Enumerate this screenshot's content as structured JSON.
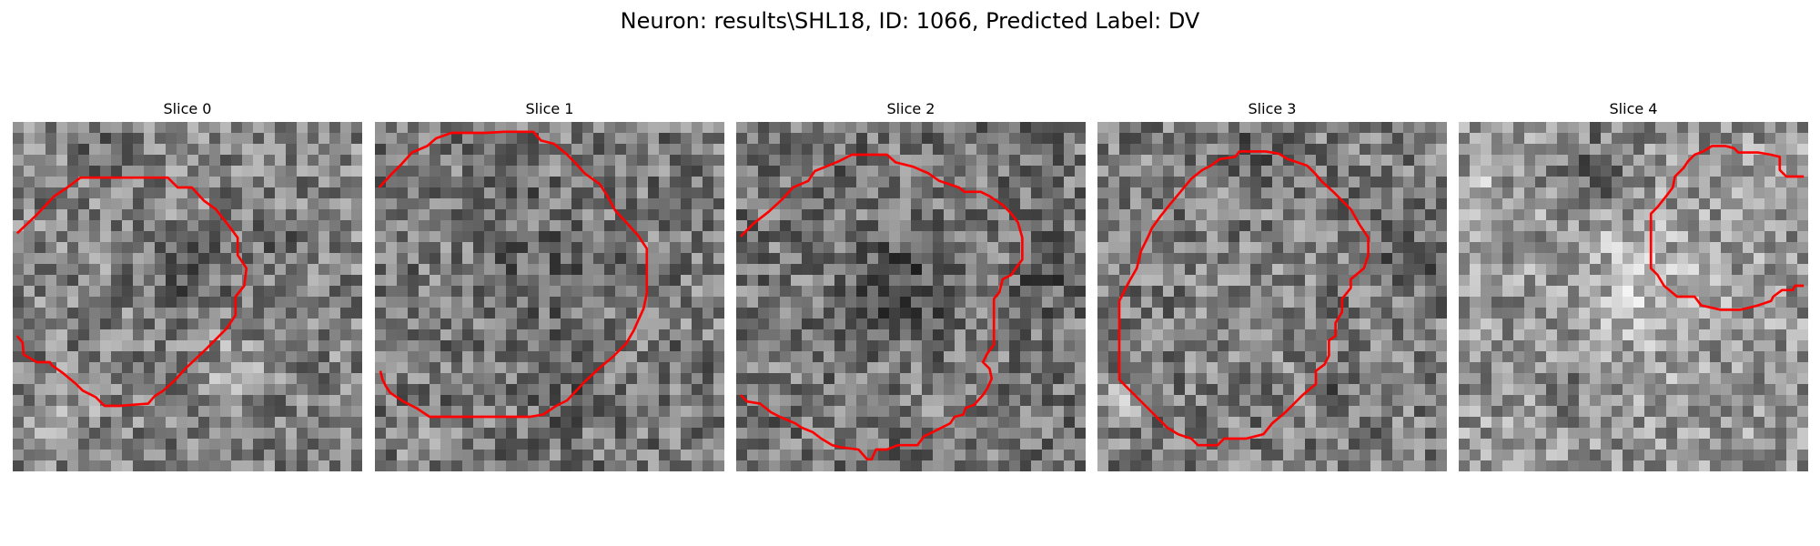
{
  "figure": {
    "title": "Neuron: results\\SHL18, ID: 1066, Predicted Label: DV"
  },
  "panels": [
    {
      "title": "Slice 0"
    },
    {
      "title": "Slice 1"
    },
    {
      "title": "Slice 2"
    },
    {
      "title": "Slice 3"
    },
    {
      "title": "Slice 4"
    }
  ],
  "colors": {
    "background": "#ffffff",
    "contour": "#ff0000",
    "image_colormap": "gray"
  }
}
